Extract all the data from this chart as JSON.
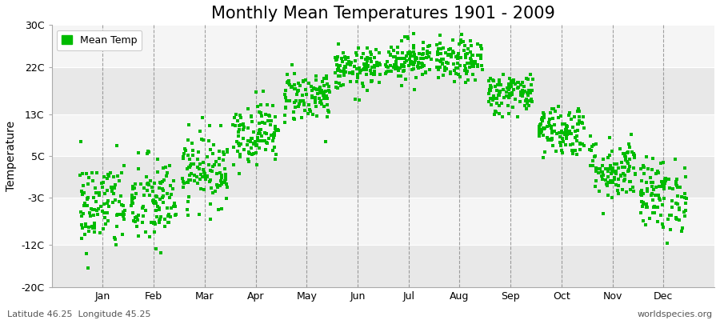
{
  "title": "Monthly Mean Temperatures 1901 - 2009",
  "ylabel": "Temperature",
  "subtitle_left": "Latitude 46.25  Longitude 45.25",
  "subtitle_right": "worldspecies.org",
  "background_color": "#ffffff",
  "plot_bg_color": "#e8e8e8",
  "plot_bg_alt_color": "#f5f5f5",
  "dot_color": "#00bb00",
  "dot_size": 5,
  "ylim": [
    -20,
    30
  ],
  "yticks": [
    -20,
    -12,
    -3,
    5,
    13,
    22,
    30
  ],
  "ytick_labels": [
    "-20C",
    "-12C",
    "-3C",
    "5C",
    "13C",
    "22C",
    "30C"
  ],
  "months": [
    "Jan",
    "Feb",
    "Mar",
    "Apr",
    "May",
    "Jun",
    "Jul",
    "Aug",
    "Sep",
    "Oct",
    "Nov",
    "Dec"
  ],
  "month_means": [
    -4.5,
    -4.0,
    2.5,
    9.5,
    16.5,
    21.5,
    23.5,
    23.0,
    17.0,
    10.0,
    2.5,
    -2.5
  ],
  "month_stds": [
    4.5,
    4.5,
    3.5,
    3.0,
    2.5,
    2.0,
    2.0,
    2.0,
    2.0,
    2.5,
    3.0,
    3.5
  ],
  "n_years": 109,
  "seed": 42,
  "legend_label": "Mean Temp",
  "title_fontsize": 15,
  "axis_fontsize": 10,
  "tick_fontsize": 9
}
